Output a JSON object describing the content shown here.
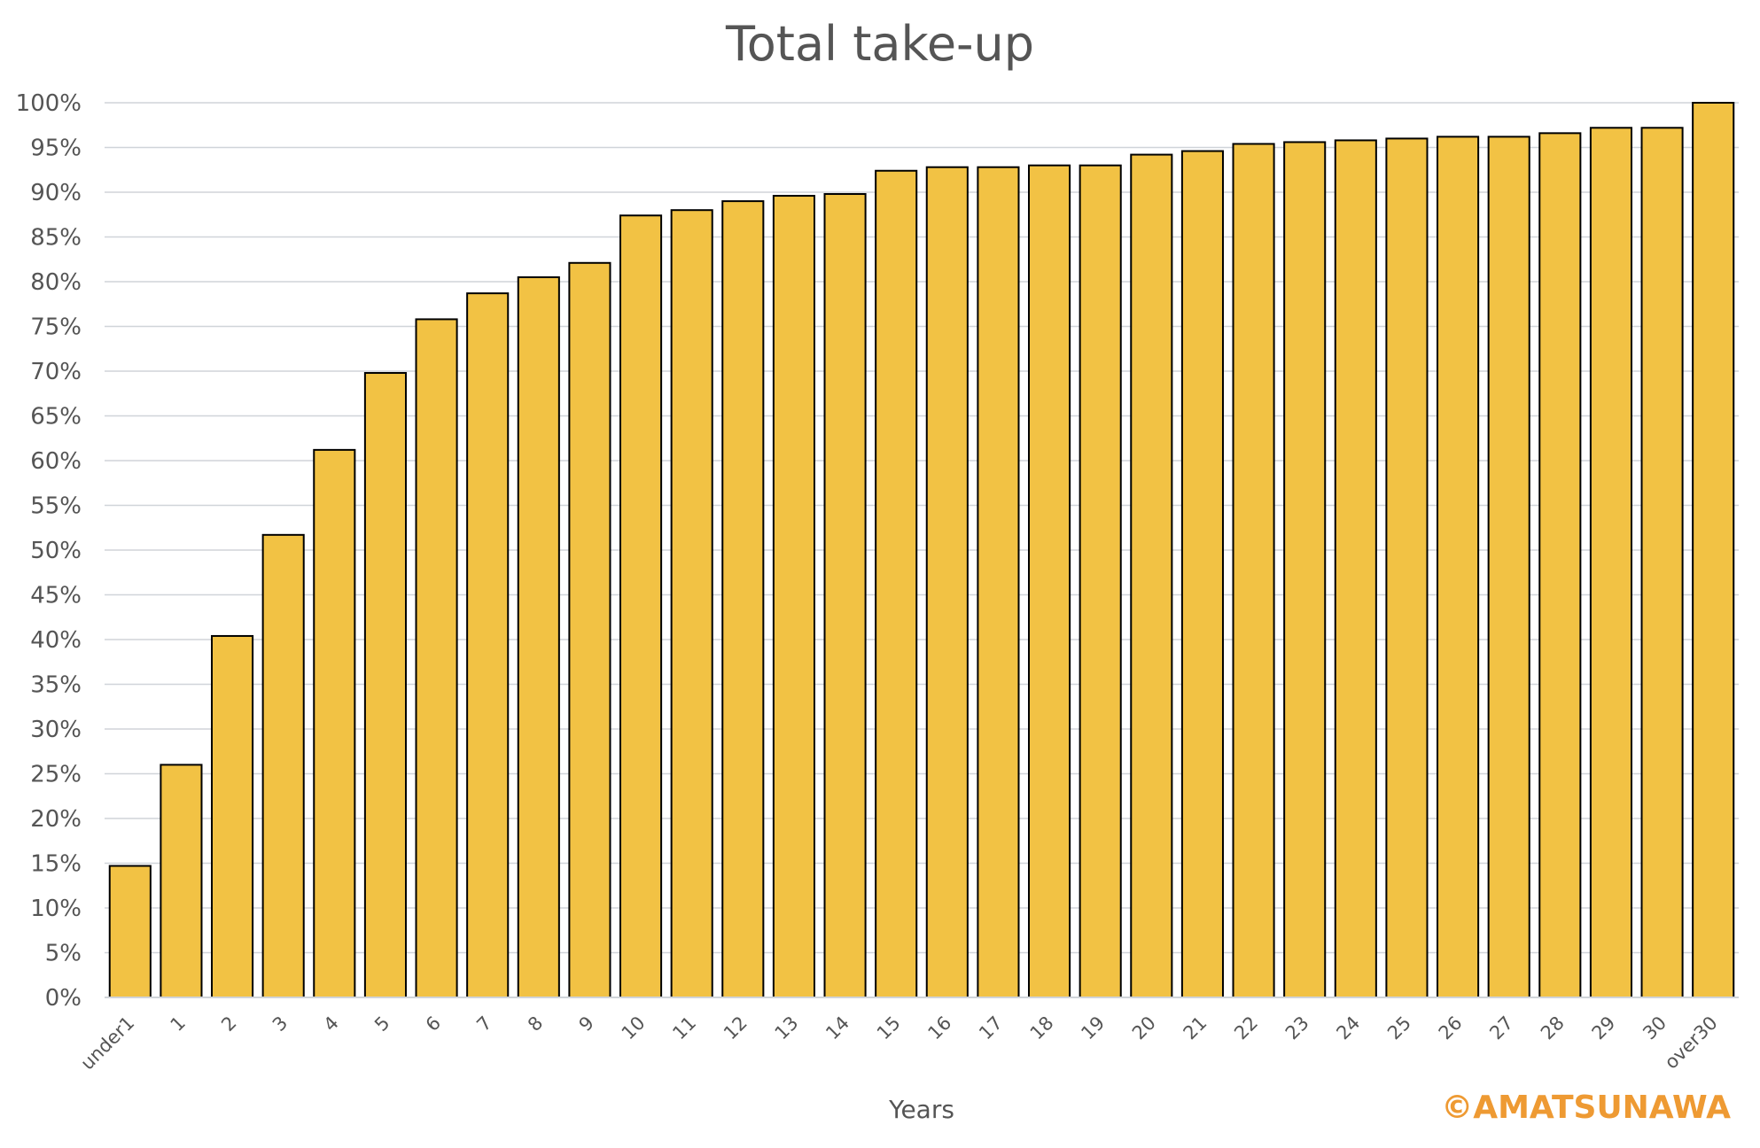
{
  "chart_data": {
    "type": "bar",
    "title": "Total take-up",
    "xlabel": "Years",
    "ylabel": "",
    "ylim": [
      0,
      100
    ],
    "y_tick_step": 5,
    "y_tick_suffix": "%",
    "grid": true,
    "categories": [
      "under1",
      "1",
      "2",
      "3",
      "4",
      "5",
      "6",
      "7",
      "8",
      "9",
      "10",
      "11",
      "12",
      "13",
      "14",
      "15",
      "16",
      "17",
      "18",
      "19",
      "20",
      "21",
      "22",
      "23",
      "24",
      "25",
      "26",
      "27",
      "28",
      "29",
      "30",
      "over30"
    ],
    "values": [
      14.7,
      26.0,
      40.4,
      51.7,
      61.2,
      69.8,
      75.8,
      78.7,
      80.5,
      82.1,
      87.4,
      88.0,
      89.0,
      89.6,
      89.8,
      92.4,
      92.8,
      92.8,
      93.0,
      93.0,
      94.2,
      94.6,
      95.4,
      95.6,
      95.8,
      96.0,
      96.2,
      96.2,
      96.6,
      97.2,
      97.2,
      100.0
    ],
    "colors": {
      "bar_fill": "#F2C244",
      "bar_stroke": "#000000",
      "grid": "#D0D4D9",
      "text": "#555555"
    }
  },
  "watermark": "©AMATSUNAWA"
}
